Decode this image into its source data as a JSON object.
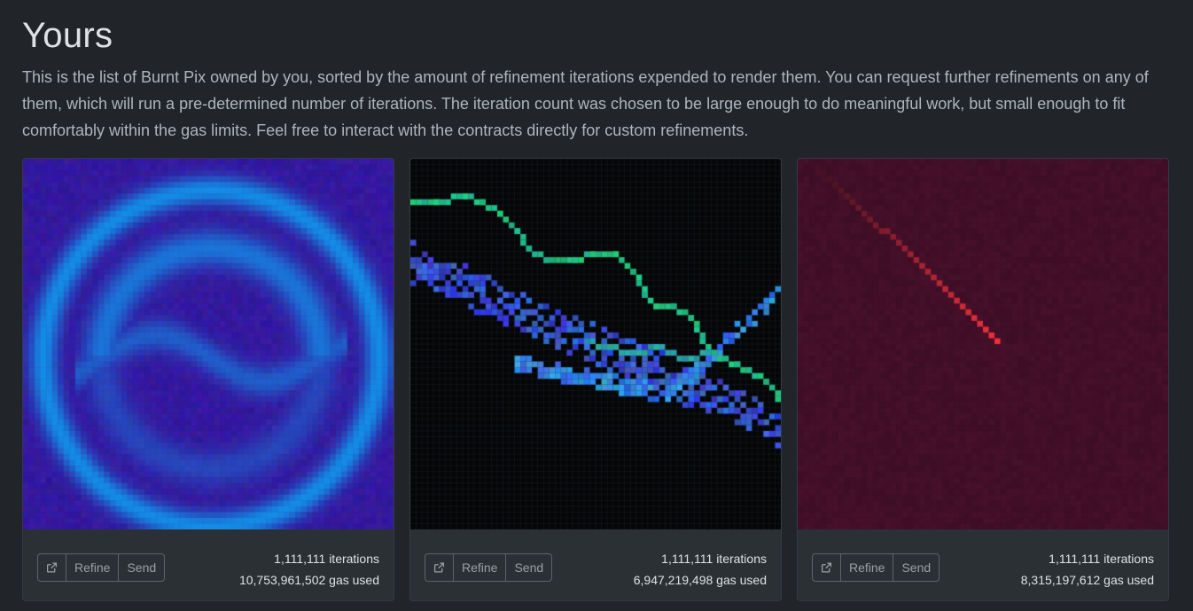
{
  "page": {
    "title": "Yours",
    "description": "This is the list of Burnt Pix owned by you, sorted by the amount of refinement iterations expended to render them. You can request further refinements on any of them, which will run a pre-determined number of iterations. The iteration count was chosen to be large enough to do meaningful work, but small enough to fit comfortably within the gas limits. Feel free to interact with the contracts directly for custom refinements."
  },
  "colors": {
    "background": "#212529",
    "card": "#2b3035",
    "border": "#343a40",
    "button_border": "#5c636a"
  },
  "cards": [
    {
      "image_theme": "blue-swirl",
      "open_icon": "external-link-icon",
      "refine_label": "Refine",
      "send_label": "Send",
      "iterations": "1,111,111 iterations",
      "gas": "10,753,961,502 gas used"
    },
    {
      "image_theme": "green-blue-lightning",
      "open_icon": "external-link-icon",
      "refine_label": "Refine",
      "send_label": "Send",
      "iterations": "1,111,111 iterations",
      "gas": "6,947,219,498 gas used"
    },
    {
      "image_theme": "red-streak",
      "open_icon": "external-link-icon",
      "refine_label": "Refine",
      "send_label": "Send",
      "iterations": "1,111,111 iterations",
      "gas": "8,315,197,612 gas used"
    }
  ]
}
